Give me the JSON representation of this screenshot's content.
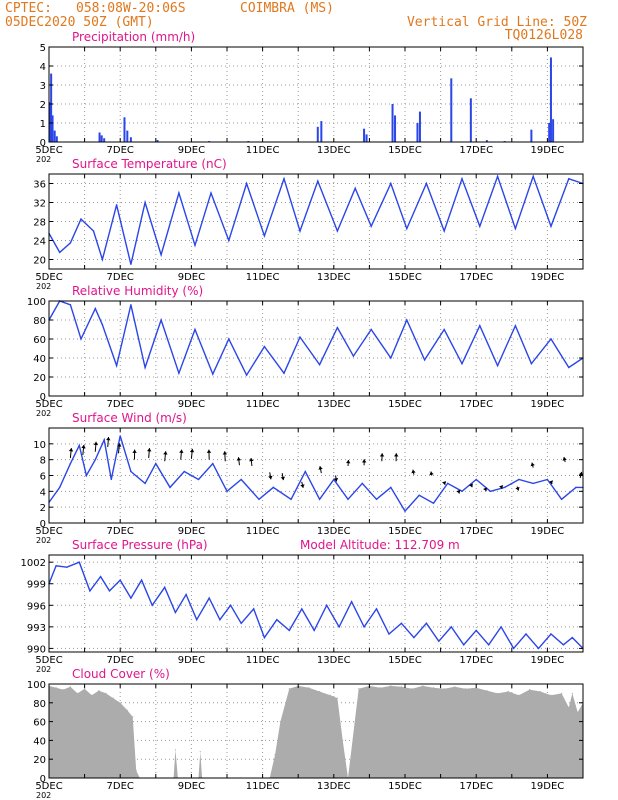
{
  "header": {
    "source": "CPTEC:",
    "coords": "058:08W-20:06S",
    "station": "COIMBRA (MS)",
    "run": "05DEC2020 50Z (GMT)",
    "grid_note": "Vertical Grid Line: 50Z",
    "model_code": "TQ0126L028"
  },
  "colors": {
    "orange": "#e0781e",
    "magenta": "#e0158c",
    "blue": "#2b46e8",
    "gray": "#acacac",
    "grid": "#9a9a9a"
  },
  "x_axis": {
    "days": 15,
    "labels": [
      "5DEC",
      "7DEC",
      "9DEC",
      "11DEC",
      "13DEC",
      "15DEC",
      "17DEC",
      "19DEC"
    ],
    "label_days": [
      0,
      2,
      4,
      6,
      8,
      10,
      12,
      14
    ],
    "year_stub": "202"
  },
  "chart_data": [
    {
      "type": "bar",
      "title": "Precipitation (mm/h)",
      "ylim": [
        0,
        5
      ],
      "yticks": [
        0,
        1,
        2,
        3,
        4,
        5
      ],
      "x_unit": "days since 05DEC2020 50Z",
      "bars": [
        [
          0.02,
          2.1
        ],
        [
          0.06,
          3.6
        ],
        [
          0.1,
          1.4
        ],
        [
          0.16,
          0.6
        ],
        [
          0.22,
          0.3
        ],
        [
          1.42,
          0.5
        ],
        [
          1.48,
          0.35
        ],
        [
          1.55,
          0.2
        ],
        [
          2.12,
          1.3
        ],
        [
          2.2,
          0.6
        ],
        [
          2.3,
          0.25
        ],
        [
          3.05,
          0.1
        ],
        [
          4.5,
          0.05
        ],
        [
          5.6,
          0.05
        ],
        [
          7.55,
          0.8
        ],
        [
          7.65,
          1.1
        ],
        [
          8.85,
          0.7
        ],
        [
          8.92,
          0.4
        ],
        [
          9.65,
          2.0
        ],
        [
          9.72,
          1.4
        ],
        [
          10.35,
          1.0
        ],
        [
          10.42,
          1.6
        ],
        [
          11.3,
          3.35
        ],
        [
          11.85,
          2.3
        ],
        [
          12.3,
          0.1
        ],
        [
          12.8,
          0.05
        ],
        [
          13.55,
          0.65
        ],
        [
          14.05,
          1.0
        ],
        [
          14.1,
          4.45
        ],
        [
          14.16,
          1.2
        ]
      ]
    },
    {
      "type": "line",
      "title": "Surface Temperature (nC)",
      "ylim": [
        18,
        38
      ],
      "yticks": [
        20,
        24,
        28,
        32,
        36
      ],
      "points": [
        [
          0,
          25.5
        ],
        [
          0.3,
          21.5
        ],
        [
          0.6,
          23.5
        ],
        [
          0.9,
          28.5
        ],
        [
          1.25,
          26
        ],
        [
          1.5,
          20
        ],
        [
          1.9,
          31.5
        ],
        [
          2.3,
          19
        ],
        [
          2.7,
          32
        ],
        [
          3.15,
          21
        ],
        [
          3.65,
          34
        ],
        [
          4.1,
          23
        ],
        [
          4.55,
          34
        ],
        [
          5.05,
          24
        ],
        [
          5.55,
          36
        ],
        [
          6.05,
          25
        ],
        [
          6.6,
          37
        ],
        [
          7.05,
          26
        ],
        [
          7.55,
          36.5
        ],
        [
          8.1,
          26
        ],
        [
          8.6,
          35
        ],
        [
          9.05,
          27
        ],
        [
          9.6,
          36
        ],
        [
          10.05,
          26.5
        ],
        [
          10.6,
          36
        ],
        [
          11.1,
          26
        ],
        [
          11.6,
          37
        ],
        [
          12.1,
          27
        ],
        [
          12.6,
          37.5
        ],
        [
          13.1,
          26.5
        ],
        [
          13.6,
          37.5
        ],
        [
          14.1,
          27
        ],
        [
          14.6,
          37
        ],
        [
          15,
          36
        ]
      ]
    },
    {
      "type": "line",
      "title": "Relative Humidity (%)",
      "ylim": [
        0,
        100
      ],
      "yticks": [
        0,
        20,
        40,
        60,
        80,
        100
      ],
      "points": [
        [
          0,
          80
        ],
        [
          0.3,
          100
        ],
        [
          0.6,
          96
        ],
        [
          0.9,
          60
        ],
        [
          1.3,
          92
        ],
        [
          1.5,
          75
        ],
        [
          1.9,
          32
        ],
        [
          2.3,
          96
        ],
        [
          2.7,
          30
        ],
        [
          3.15,
          80
        ],
        [
          3.65,
          24
        ],
        [
          4.1,
          70
        ],
        [
          4.6,
          23
        ],
        [
          5.05,
          60
        ],
        [
          5.55,
          22
        ],
        [
          6.05,
          52
        ],
        [
          6.6,
          24
        ],
        [
          7.05,
          62
        ],
        [
          7.6,
          33
        ],
        [
          8.1,
          72
        ],
        [
          8.55,
          42
        ],
        [
          9.05,
          70
        ],
        [
          9.6,
          40
        ],
        [
          10.05,
          80
        ],
        [
          10.55,
          38
        ],
        [
          11.1,
          70
        ],
        [
          11.6,
          34
        ],
        [
          12.1,
          74
        ],
        [
          12.6,
          32
        ],
        [
          13.1,
          74
        ],
        [
          13.55,
          34
        ],
        [
          14.1,
          60
        ],
        [
          14.6,
          30
        ],
        [
          15,
          40
        ]
      ]
    },
    {
      "type": "line",
      "title": "Surface Wind (m/s)",
      "ylim": [
        0,
        12
      ],
      "yticks": [
        0,
        2,
        4,
        6,
        8,
        10
      ],
      "points": [
        [
          0,
          2.6
        ],
        [
          0.3,
          4.5
        ],
        [
          0.6,
          7.5
        ],
        [
          0.85,
          9.8
        ],
        [
          1.05,
          6
        ],
        [
          1.3,
          8
        ],
        [
          1.55,
          10.5
        ],
        [
          1.75,
          5.5
        ],
        [
          2.0,
          11
        ],
        [
          2.3,
          6.5
        ],
        [
          2.7,
          5
        ],
        [
          3.0,
          7.5
        ],
        [
          3.4,
          4.5
        ],
        [
          3.8,
          6.5
        ],
        [
          4.2,
          5.5
        ],
        [
          4.6,
          7.5
        ],
        [
          5.0,
          4
        ],
        [
          5.4,
          5.5
        ],
        [
          5.9,
          3
        ],
        [
          6.3,
          4.5
        ],
        [
          6.8,
          3
        ],
        [
          7.2,
          6.5
        ],
        [
          7.6,
          3
        ],
        [
          8.0,
          5.5
        ],
        [
          8.4,
          3
        ],
        [
          8.8,
          5
        ],
        [
          9.2,
          3
        ],
        [
          9.6,
          4.5
        ],
        [
          10.0,
          1.5
        ],
        [
          10.4,
          3.5
        ],
        [
          10.8,
          2.5
        ],
        [
          11.2,
          5
        ],
        [
          11.6,
          4
        ],
        [
          12.0,
          5.5
        ],
        [
          12.4,
          4
        ],
        [
          12.8,
          4.5
        ],
        [
          13.2,
          5.5
        ],
        [
          13.6,
          5
        ],
        [
          14.0,
          5.5
        ],
        [
          14.4,
          3
        ],
        [
          14.8,
          4.5
        ],
        [
          15,
          4.5
        ]
      ],
      "arrows": [
        [
          0.6,
          8.2,
          1.0,
          10
        ],
        [
          0.95,
          8.6,
          1.0,
          10
        ],
        [
          1.3,
          9.0,
          0.8,
          10
        ],
        [
          1.65,
          9.6,
          0.8,
          10
        ],
        [
          1.95,
          8.8,
          1.2,
          10
        ],
        [
          2.4,
          8.0,
          0.2,
          10
        ],
        [
          2.8,
          8.2,
          0.8,
          10
        ],
        [
          3.25,
          7.8,
          1.0,
          10
        ],
        [
          3.7,
          8.0,
          0.9,
          10
        ],
        [
          4.0,
          8.1,
          1.0,
          10
        ],
        [
          4.5,
          8.0,
          -0.3,
          10
        ],
        [
          4.95,
          7.8,
          -0.5,
          10
        ],
        [
          5.35,
          7.3,
          -1.0,
          8
        ],
        [
          5.7,
          7.2,
          -0.9,
          8
        ],
        [
          6.2,
          6.4,
          1.2,
          -7
        ],
        [
          6.55,
          6.3,
          1.2,
          -7
        ],
        [
          7.1,
          5.2,
          1.4,
          -6
        ],
        [
          7.65,
          6.3,
          -1.4,
          7
        ],
        [
          8.05,
          6.0,
          0.9,
          -6
        ],
        [
          8.4,
          7.2,
          0.4,
          6
        ],
        [
          8.85,
          7.3,
          0.2,
          6
        ],
        [
          9.35,
          7.8,
          0.3,
          8
        ],
        [
          9.75,
          7.8,
          0.2,
          8
        ],
        [
          10.25,
          6.1,
          -1.0,
          5
        ],
        [
          10.75,
          6.0,
          -0.8,
          4
        ],
        [
          11.1,
          5.2,
          0.9,
          -3
        ],
        [
          11.5,
          4.1,
          1.0,
          -3
        ],
        [
          11.85,
          4.9,
          1.4,
          -3
        ],
        [
          12.25,
          4.4,
          1.2,
          -3
        ],
        [
          12.7,
          4.7,
          1.0,
          -3
        ],
        [
          13.15,
          4.6,
          1.4,
          -4
        ],
        [
          13.6,
          7.0,
          -1.2,
          5
        ],
        [
          14.1,
          5.3,
          1.0,
          -3
        ],
        [
          14.5,
          7.7,
          -1.3,
          5
        ],
        [
          14.92,
          5.7,
          1.5,
          6
        ]
      ]
    },
    {
      "type": "line",
      "title": "Surface Pressure (hPa)",
      "annotation": "Model Altitude: 112.709 m",
      "ylim": [
        989.5,
        1003
      ],
      "yticks": [
        990,
        993,
        996,
        999,
        1002
      ],
      "points": [
        [
          0,
          999
        ],
        [
          0.2,
          1001.5
        ],
        [
          0.5,
          1001.3
        ],
        [
          0.85,
          1002
        ],
        [
          1.15,
          998
        ],
        [
          1.45,
          1000
        ],
        [
          1.7,
          998
        ],
        [
          2.0,
          999.5
        ],
        [
          2.3,
          997
        ],
        [
          2.6,
          999.5
        ],
        [
          2.9,
          996
        ],
        [
          3.25,
          998.5
        ],
        [
          3.55,
          995
        ],
        [
          3.85,
          997.5
        ],
        [
          4.15,
          994
        ],
        [
          4.5,
          997
        ],
        [
          4.8,
          994
        ],
        [
          5.1,
          996
        ],
        [
          5.4,
          993.5
        ],
        [
          5.75,
          995.5
        ],
        [
          6.05,
          991.5
        ],
        [
          6.4,
          994
        ],
        [
          6.75,
          992.5
        ],
        [
          7.1,
          995.5
        ],
        [
          7.45,
          992.5
        ],
        [
          7.8,
          996
        ],
        [
          8.15,
          993
        ],
        [
          8.5,
          996.5
        ],
        [
          8.85,
          993
        ],
        [
          9.2,
          995.5
        ],
        [
          9.55,
          992
        ],
        [
          9.9,
          993.5
        ],
        [
          10.25,
          991.5
        ],
        [
          10.6,
          993.5
        ],
        [
          10.95,
          991
        ],
        [
          11.3,
          993
        ],
        [
          11.65,
          990.5
        ],
        [
          12.0,
          992.5
        ],
        [
          12.35,
          990.5
        ],
        [
          12.7,
          993
        ],
        [
          13.05,
          990
        ],
        [
          13.4,
          992
        ],
        [
          13.75,
          990
        ],
        [
          14.1,
          992
        ],
        [
          14.45,
          990.5
        ],
        [
          14.7,
          991.5
        ],
        [
          15,
          990
        ]
      ]
    },
    {
      "type": "area",
      "title": "Cloud Cover (%)",
      "ylim": [
        0,
        100
      ],
      "yticks": [
        0,
        20,
        40,
        60,
        80,
        100
      ],
      "points": [
        [
          0,
          98
        ],
        [
          0.2,
          96
        ],
        [
          0.4,
          94
        ],
        [
          0.6,
          97
        ],
        [
          0.8,
          90
        ],
        [
          1.0,
          95
        ],
        [
          1.2,
          88
        ],
        [
          1.4,
          93
        ],
        [
          1.6,
          90
        ],
        [
          1.8,
          85
        ],
        [
          2.0,
          80
        ],
        [
          2.2,
          72
        ],
        [
          2.35,
          65
        ],
        [
          2.45,
          8
        ],
        [
          2.55,
          0
        ],
        [
          3.5,
          0
        ],
        [
          3.55,
          30
        ],
        [
          3.62,
          0
        ],
        [
          4.2,
          0
        ],
        [
          4.25,
          28
        ],
        [
          4.3,
          0
        ],
        [
          6.2,
          0
        ],
        [
          6.35,
          25
        ],
        [
          6.5,
          60
        ],
        [
          6.75,
          95
        ],
        [
          7.0,
          98
        ],
        [
          7.3,
          96
        ],
        [
          7.6,
          92
        ],
        [
          7.9,
          88
        ],
        [
          8.1,
          85
        ],
        [
          8.25,
          40
        ],
        [
          8.4,
          0
        ],
        [
          8.7,
          95
        ],
        [
          9.0,
          98
        ],
        [
          9.3,
          96
        ],
        [
          9.6,
          98
        ],
        [
          9.9,
          97
        ],
        [
          10.2,
          95
        ],
        [
          10.5,
          98
        ],
        [
          10.8,
          96
        ],
        [
          11.1,
          95
        ],
        [
          11.4,
          97
        ],
        [
          11.7,
          95
        ],
        [
          12.0,
          96
        ],
        [
          12.3,
          93
        ],
        [
          12.6,
          90
        ],
        [
          12.9,
          92
        ],
        [
          13.2,
          88
        ],
        [
          13.5,
          94
        ],
        [
          13.8,
          92
        ],
        [
          14.1,
          88
        ],
        [
          14.4,
          90
        ],
        [
          14.6,
          75
        ],
        [
          14.7,
          90
        ],
        [
          14.85,
          70
        ],
        [
          15,
          80
        ]
      ]
    }
  ]
}
